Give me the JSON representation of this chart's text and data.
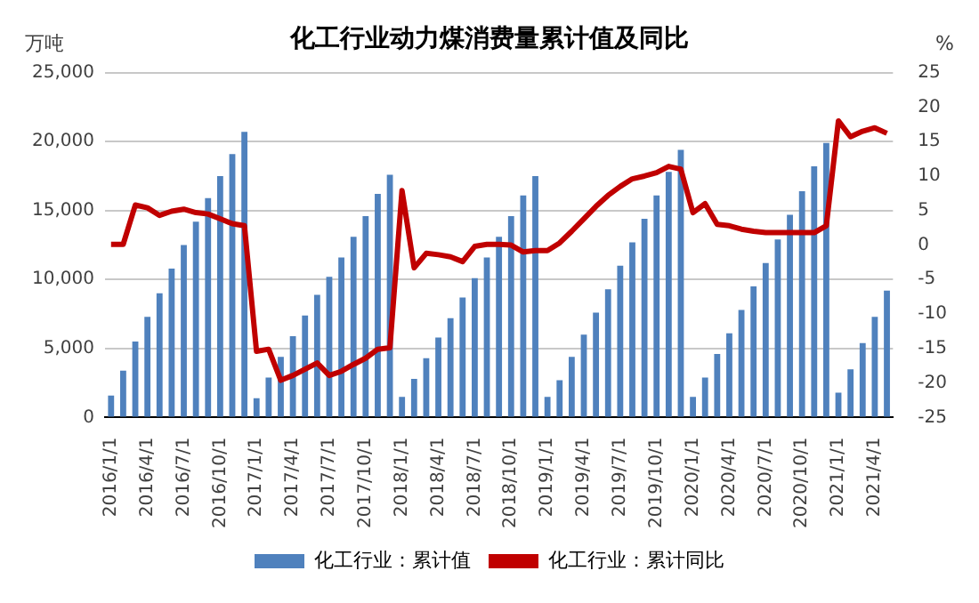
{
  "chart_data": {
    "type": "bar",
    "title": "化工行业动力煤消费量累计值及同比",
    "ylabel": "万吨",
    "y2label": "%",
    "categories": [
      "2016/1/1",
      null,
      null,
      "2016/4/1",
      null,
      null,
      "2016/7/1",
      null,
      null,
      "2016/10/1",
      null,
      null,
      "2017/1/1",
      null,
      null,
      "2017/4/1",
      null,
      null,
      "2017/7/1",
      null,
      null,
      "2017/10/1",
      null,
      null,
      "2018/1/1",
      null,
      null,
      "2018/4/1",
      null,
      null,
      "2018/7/1",
      null,
      null,
      "2018/10/1",
      null,
      null,
      "2019/1/1",
      null,
      null,
      "2019/4/1",
      null,
      null,
      "2019/7/1",
      null,
      null,
      "2019/10/1",
      null,
      null,
      "2020/1/1",
      null,
      null,
      "2020/4/1",
      null,
      null,
      "2020/7/1",
      null,
      null,
      "2020/10/1",
      null,
      null,
      "2021/1/1",
      null,
      null,
      "2021/4/1",
      null
    ],
    "series": [
      {
        "name": "化工行业：累计值",
        "color": "#4f81bd",
        "values": [
          1600,
          3400,
          5500,
          7300,
          9000,
          10800,
          12500,
          14200,
          15900,
          17500,
          19100,
          20700,
          1400,
          2900,
          4400,
          5900,
          7400,
          8900,
          10200,
          11600,
          13100,
          14600,
          16200,
          17600,
          1500,
          2800,
          4300,
          5800,
          7200,
          8700,
          10100,
          11600,
          13100,
          14600,
          16100,
          17500,
          1500,
          2700,
          4400,
          6000,
          7600,
          9300,
          11000,
          12700,
          14400,
          16100,
          17800,
          19400,
          1500,
          2900,
          4600,
          6100,
          7800,
          9500,
          11200,
          12900,
          14700,
          16400,
          18200,
          19900,
          1800,
          3500,
          5400,
          7300,
          9200
        ]
      },
      {
        "name": "化工行业：累计同比",
        "type": "line",
        "axis": "y2",
        "color": "#c00000",
        "values": [
          0.1,
          0.1,
          5.8,
          5.4,
          4.3,
          4.9,
          5.2,
          4.7,
          4.5,
          3.8,
          3.1,
          2.8,
          -15.4,
          -15.1,
          -19.6,
          -18.9,
          -18,
          -17.1,
          -18.9,
          -18.3,
          -17.3,
          -16.4,
          -15.1,
          -14.9,
          7.9,
          -3.3,
          -1.2,
          -1.4,
          -1.7,
          -2.4,
          -0.2,
          0.1,
          0.1,
          0,
          -1,
          -0.8,
          -0.8,
          0.3,
          2,
          3.8,
          5.6,
          7.2,
          8.5,
          9.6,
          10,
          10.5,
          11.4,
          11,
          4.7,
          6,
          3,
          2.8,
          2.3,
          2,
          1.8,
          1.8,
          1.8,
          1.8,
          1.8,
          2.8,
          18,
          15.7,
          16.5,
          17,
          16.2
        ]
      }
    ],
    "ylim": [
      0,
      25000
    ],
    "yticks": [
      {
        "value": 0,
        "label": "0"
      },
      {
        "value": 5000,
        "label": "5,000"
      },
      {
        "value": 10000,
        "label": "10,000"
      },
      {
        "value": 15000,
        "label": "15,000"
      },
      {
        "value": 20000,
        "label": "20,000"
      },
      {
        "value": 25000,
        "label": "25,000"
      }
    ],
    "y2lim": [
      -25,
      25
    ],
    "y2ticks": [
      -25,
      -20,
      -15,
      -10,
      -5,
      0,
      5,
      10,
      15,
      20,
      25
    ],
    "grid": "y",
    "legend": "bottom",
    "marker": "none",
    "line_style": "solid"
  }
}
